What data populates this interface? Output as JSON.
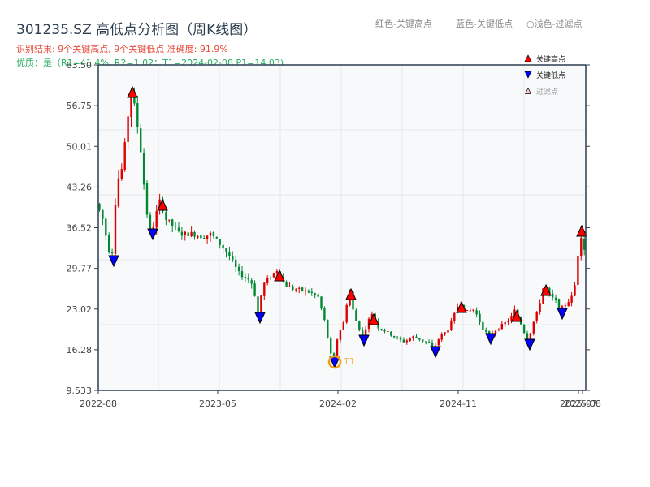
{
  "header": {
    "title": "301235.SZ 高低点分析图（周K线图）",
    "result_line": "识别结果: 9个关键高点, 9个关键低点  准确度: 91.9%",
    "quality_line": "优质：是（R1=41.4%, R2=1.02；T1=2024-02-08 P1=14.03)",
    "hint_red": "红色-关键高点",
    "hint_blue": "蓝色-关键低点",
    "hint_light": "○浅色-过滤点"
  },
  "legend": [
    {
      "symbol": "triangle-up",
      "color": "#ff0000",
      "label": "关键高点"
    },
    {
      "symbol": "triangle-down",
      "color": "#0000ff",
      "label": "关键低点"
    },
    {
      "symbol": "triangle-up-hollow",
      "color": "#ffcccc",
      "label": "过滤点"
    }
  ],
  "colors": {
    "up": "#dd0000",
    "down": "#008833",
    "high_marker": "#ff0000",
    "low_marker": "#0000ff",
    "t1_ring": "#f39c12",
    "axes": "#2c3e50",
    "grid": "#e3e6ea",
    "plot_bg": "#f8f9fb"
  },
  "chart_data": {
    "type": "candlestick",
    "title": "301235.SZ 高低点分析图（周K线图）",
    "xlabel": "",
    "ylabel": "",
    "ylim": [
      9.533,
      63.5
    ],
    "y_ticks": [
      "9.533",
      "16.28",
      "23.02",
      "29.77",
      "36.52",
      "43.26",
      "50.01",
      "56.75",
      "63.50"
    ],
    "x_ticks": [
      "2022-08",
      "2023-05",
      "2024-02",
      "2024-11",
      "2025-07",
      "2025-08"
    ],
    "grid": true,
    "legend_position": "upper right",
    "key_highs": [
      {
        "date": "2022-10",
        "price": 60.0
      },
      {
        "date": "2022-12",
        "price": 41.3
      },
      {
        "date": "2023-09",
        "price": 29.6
      },
      {
        "date": "2024-03",
        "price": 26.6
      },
      {
        "date": "2024-05",
        "price": 22.4
      },
      {
        "date": "2024-12",
        "price": 24.3
      },
      {
        "date": "2025-03",
        "price": 22.8
      },
      {
        "date": "2025-05",
        "price": 27.1
      },
      {
        "date": "2025-08",
        "price": 36.9
      }
    ],
    "key_lows": [
      {
        "date": "2022-09",
        "price": 31.5
      },
      {
        "date": "2022-12",
        "price": 35.0
      },
      {
        "date": "2023-08",
        "price": 22.2
      },
      {
        "date": "2024-02-08",
        "price": 14.03,
        "label": "T1"
      },
      {
        "date": "2024-04",
        "price": 18.2
      },
      {
        "date": "2024-10",
        "price": 16.4
      },
      {
        "date": "2025-01",
        "price": 18.5
      },
      {
        "date": "2025-04",
        "price": 17.6
      },
      {
        "date": "2025-06",
        "price": 22.9
      }
    ],
    "annotation": {
      "label": "T1",
      "date": "2024-02-08",
      "price": 14.03
    }
  }
}
